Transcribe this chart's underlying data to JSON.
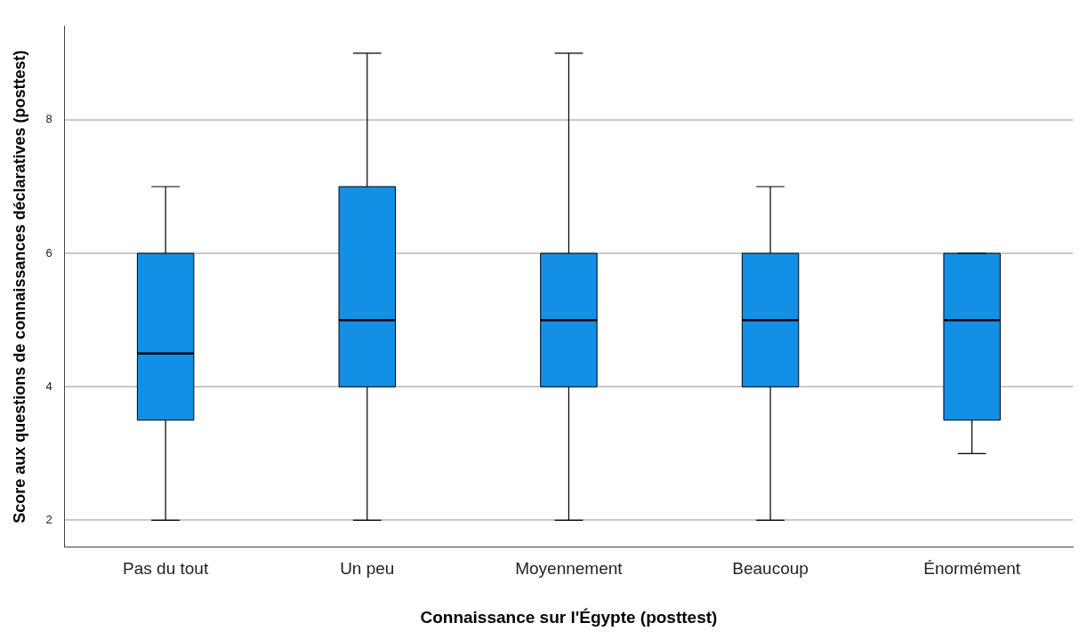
{
  "chart_data": {
    "type": "box",
    "xlabel": "Connaissance sur l'Égypte (posttest)",
    "ylabel": "Score aux questions de connaissances déclaratives (posttest)",
    "categories": [
      "Pas du tout",
      "Un peu",
      "Moyennement",
      "Beaucoup",
      "Énormément"
    ],
    "color": "#1390e6",
    "boxes": [
      {
        "low": 2,
        "q1": 3.5,
        "median": 4.5,
        "q3": 6,
        "high": 7
      },
      {
        "low": 2,
        "q1": 4,
        "median": 5,
        "q3": 7,
        "high": 9
      },
      {
        "low": 2,
        "q1": 4,
        "median": 5,
        "q3": 6,
        "high": 9
      },
      {
        "low": 2,
        "q1": 4,
        "median": 5,
        "q3": 6,
        "high": 7
      },
      {
        "low": 3,
        "q1": 3.5,
        "median": 5,
        "q3": 6,
        "high": 6
      }
    ],
    "ylim": [
      1.6,
      9.4
    ],
    "yticks": [
      2,
      4,
      6,
      8
    ],
    "grid": "y"
  }
}
